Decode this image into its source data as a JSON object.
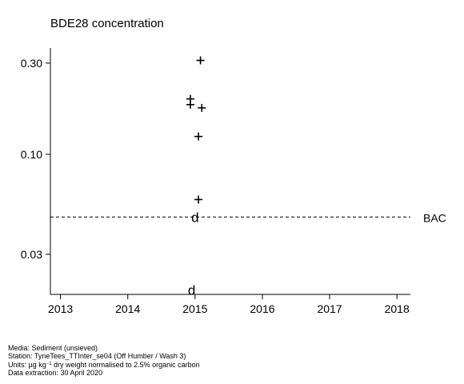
{
  "chart_data": {
    "type": "scatter",
    "title": "BDE28 concentration",
    "y_scale": "log",
    "xlim": [
      2012.85,
      2018.2
    ],
    "ylim": [
      0.0185,
      0.36
    ],
    "x_ticks": [
      "2013",
      "2014",
      "2015",
      "2016",
      "2017",
      "2018"
    ],
    "y_ticks": [
      "0.30",
      "0.10",
      "0.03"
    ],
    "series": [
      {
        "marker": "+",
        "points": [
          {
            "x": 2015.08,
            "y": 0.31
          },
          {
            "x": 2014.93,
            "y": 0.195
          },
          {
            "x": 2014.93,
            "y": 0.182
          },
          {
            "x": 2015.1,
            "y": 0.175
          },
          {
            "x": 2015.05,
            "y": 0.124
          },
          {
            "x": 2015.05,
            "y": 0.058
          }
        ]
      },
      {
        "marker": "d",
        "points": [
          {
            "x": 2015.0,
            "y": 0.047
          },
          {
            "x": 2014.95,
            "y": 0.0195
          }
        ]
      }
    ],
    "reference_lines": [
      {
        "label": "BAC",
        "y": 0.047,
        "style": "dashed"
      }
    ]
  },
  "footer": {
    "media": "Media: Sediment (unsieved)",
    "station": "Station: TyneTees_TTInter_se04 (Off Humber / Wash 3)",
    "units_prefix": "Units:  µg kg",
    "units_sup": "−1",
    "units_suffix": " dry weight normalised to 2.5% organic carbon",
    "extraction": "Data extraction: 30 April 2020"
  }
}
